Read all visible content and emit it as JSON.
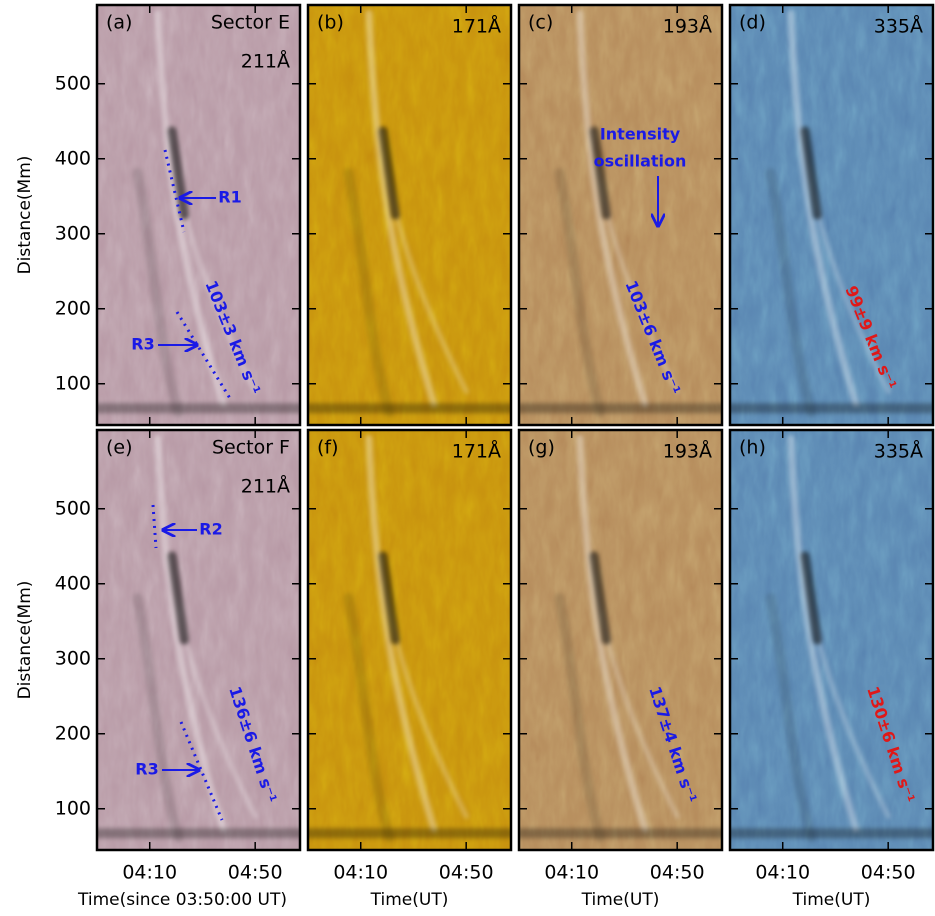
{
  "chart_data": [
    {
      "type": "image",
      "panel": "(a)",
      "sector": "Sector E",
      "wavelength": "211Å",
      "color": "#b89aa6",
      "ylabel": "Distance(Mm)",
      "xlim": [
        0,
        77
      ],
      "xticks": [
        20,
        60
      ],
      "ylim": [
        45,
        605
      ],
      "yticks": [
        100,
        200,
        300,
        400,
        500
      ],
      "annotations": [
        {
          "text": "R1",
          "color": "#1a1ae6"
        },
        {
          "text": "R3",
          "color": "#1a1ae6"
        },
        {
          "text": "103±3 km s⁻¹",
          "color": "#1a1ae6"
        }
      ]
    },
    {
      "type": "image",
      "panel": "(b)",
      "wavelength": "171Å",
      "color": "#c8920e",
      "xlim": [
        0,
        77
      ],
      "xticks": [
        20,
        60
      ],
      "ylim": [
        45,
        605
      ],
      "yticks": [
        100,
        200,
        300,
        400,
        500
      ],
      "annotations": []
    },
    {
      "type": "image",
      "panel": "(c)",
      "wavelength": "193Å",
      "color": "#b68c5c",
      "xlim": [
        0,
        77
      ],
      "xticks": [
        20,
        60
      ],
      "ylim": [
        45,
        605
      ],
      "yticks": [
        100,
        200,
        300,
        400,
        500
      ],
      "annotations": [
        {
          "text": "Intensity",
          "color": "#1a1ae6"
        },
        {
          "text": "oscillation",
          "color": "#1a1ae6"
        },
        {
          "text": "103±6 km s⁻¹",
          "color": "#1a1ae6"
        }
      ]
    },
    {
      "type": "image",
      "panel": "(d)",
      "wavelength": "335Å",
      "color": "#5a86b2",
      "xlim": [
        0,
        77
      ],
      "xticks": [
        20,
        60
      ],
      "ylim": [
        45,
        605
      ],
      "yticks": [
        100,
        200,
        300,
        400,
        500
      ],
      "annotations": [
        {
          "text": "99±9 km s⁻¹",
          "color": "#e01818"
        }
      ]
    },
    {
      "type": "image",
      "panel": "(e)",
      "sector": "Sector F",
      "wavelength": "211Å",
      "color": "#b89aa6",
      "ylabel": "Distance(Mm)",
      "xlabel": "Time(since 03:50:00 UT)",
      "xlim": [
        0,
        77
      ],
      "xticks": [
        {
          "value": 20,
          "label": "04:10"
        },
        {
          "value": 60,
          "label": "04:50"
        }
      ],
      "ylim": [
        45,
        605
      ],
      "yticks": [
        100,
        200,
        300,
        400,
        500
      ],
      "annotations": [
        {
          "text": "R2",
          "color": "#1a1ae6"
        },
        {
          "text": "R3",
          "color": "#1a1ae6"
        },
        {
          "text": "136±6 km s⁻¹",
          "color": "#1a1ae6"
        }
      ]
    },
    {
      "type": "image",
      "panel": "(f)",
      "wavelength": "171Å",
      "color": "#c8920e",
      "xlabel": "Time(UT)",
      "xlim": [
        0,
        77
      ],
      "xticks": [
        {
          "value": 20,
          "label": "04:10"
        },
        {
          "value": 60,
          "label": "04:50"
        }
      ],
      "ylim": [
        45,
        605
      ],
      "yticks": [
        100,
        200,
        300,
        400,
        500
      ],
      "annotations": []
    },
    {
      "type": "image",
      "panel": "(g)",
      "wavelength": "193Å",
      "color": "#b68c5c",
      "xlabel": "Time(UT)",
      "xlim": [
        0,
        77
      ],
      "xticks": [
        {
          "value": 20,
          "label": "04:10"
        },
        {
          "value": 60,
          "label": "04:50"
        }
      ],
      "ylim": [
        45,
        605
      ],
      "yticks": [
        100,
        200,
        300,
        400,
        500
      ],
      "annotations": [
        {
          "text": "137±4 km s⁻¹",
          "color": "#1a1ae6"
        }
      ]
    },
    {
      "type": "image",
      "panel": "(h)",
      "wavelength": "335Å",
      "color": "#5a86b2",
      "xlabel": "Time(UT)",
      "xlim": [
        0,
        77
      ],
      "xticks": [
        {
          "value": 20,
          "label": "04:10"
        },
        {
          "value": 60,
          "label": "04:50"
        }
      ],
      "ylim": [
        45,
        605
      ],
      "yticks": [
        100,
        200,
        300,
        400,
        500
      ],
      "annotations": [
        {
          "text": "130±6 km s⁻¹",
          "color": "#e01818"
        }
      ]
    }
  ]
}
